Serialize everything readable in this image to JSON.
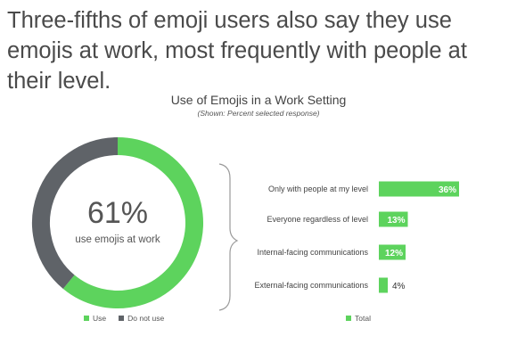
{
  "headline": "Three-fifths of emoji users also say they use emojis at work, most frequently with people at their level.",
  "chart_data": [
    {
      "type": "pie",
      "title": "Use of Emojis in a Work Setting",
      "subtitle": "(Shown: Percent selected response)",
      "center_value": "61%",
      "center_label": "use emojis at work",
      "slices": [
        {
          "name": "Use",
          "value": 61,
          "color": "#5dd35d"
        },
        {
          "name": "Do not use",
          "value": 39,
          "color": "#5f6368"
        }
      ],
      "legend": [
        "Use",
        "Do not use"
      ]
    },
    {
      "type": "bar",
      "orientation": "horizontal",
      "categories": [
        "Only with people at my level",
        "Everyone regardless of level",
        "Internal-facing communications",
        "External-facing communications"
      ],
      "series": [
        {
          "name": "Total",
          "values": [
            36,
            13,
            12,
            4
          ],
          "color": "#5dd35d"
        }
      ],
      "value_labels": [
        "36%",
        "13%",
        "12%",
        "4%"
      ],
      "xlim": [
        0,
        40
      ],
      "grid": false,
      "legend": [
        "Total"
      ]
    }
  ]
}
